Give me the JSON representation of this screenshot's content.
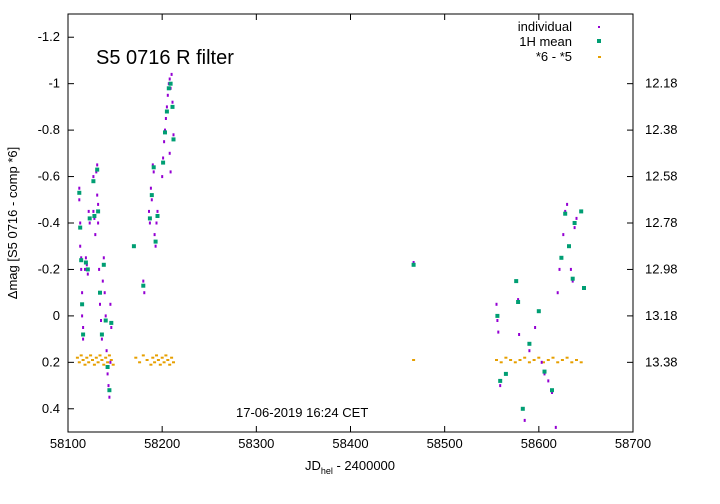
{
  "chart_data": {
    "type": "scatter",
    "title": "S5 0716 R filter",
    "annotation": "17-06-2019  16:24 CET",
    "xlabel_main": "JD",
    "xlabel_sub": "hel",
    "xlabel_tail": " - 2400000",
    "ylabel": "Δmag [S5 0716 - comp *6]",
    "xlim": [
      58100,
      58700
    ],
    "ylim": [
      -1.3,
      0.5
    ],
    "y_inverted": true,
    "x_ticks": [
      "58100",
      "58200",
      "58300",
      "58400",
      "58500",
      "58600",
      "58700"
    ],
    "y_ticks": [
      "-1.2",
      "-1",
      "-0.8",
      "-0.6",
      "-0.4",
      "-0.2",
      "0",
      "0.2",
      "0.4"
    ],
    "y2_ticks": [
      "12.18",
      "12.38",
      "12.58",
      "12.78",
      "12.98",
      "13.18",
      "13.38"
    ],
    "grid": false,
    "legend_position": "top-right",
    "legend": [
      {
        "label": "individual",
        "color": "#9400d3"
      },
      {
        "label": "1H mean",
        "color": "#009e73"
      },
      {
        "label": "*6 - *5",
        "color": "#e69f00"
      }
    ],
    "series": [
      {
        "name": "individual",
        "color": "#9400d3",
        "points": [
          [
            58112,
            -0.55
          ],
          [
            58112,
            -0.5
          ],
          [
            58113,
            -0.4
          ],
          [
            58113,
            -0.3
          ],
          [
            58114,
            -0.25
          ],
          [
            58114,
            -0.2
          ],
          [
            58115,
            -0.1
          ],
          [
            58115,
            0.0
          ],
          [
            58116,
            0.05
          ],
          [
            58116,
            0.1
          ],
          [
            58118,
            -0.2
          ],
          [
            58119,
            -0.25
          ],
          [
            58120,
            -0.22
          ],
          [
            58121,
            -0.18
          ],
          [
            58122,
            -0.45
          ],
          [
            58123,
            -0.4
          ],
          [
            58126,
            -0.58
          ],
          [
            58127,
            -0.6
          ],
          [
            58127,
            -0.45
          ],
          [
            58128,
            -0.42
          ],
          [
            58129,
            -0.35
          ],
          [
            58130,
            -0.62
          ],
          [
            58131,
            -0.65
          ],
          [
            58131,
            -0.52
          ],
          [
            58132,
            -0.48
          ],
          [
            58132,
            -0.4
          ],
          [
            58133,
            -0.2
          ],
          [
            58134,
            -0.05
          ],
          [
            58135,
            0.02
          ],
          [
            58136,
            0.1
          ],
          [
            58137,
            -0.15
          ],
          [
            58138,
            -0.25
          ],
          [
            58139,
            -0.1
          ],
          [
            58140,
            0.0
          ],
          [
            58141,
            0.15
          ],
          [
            58142,
            0.25
          ],
          [
            58143,
            0.3
          ],
          [
            58144,
            0.35
          ],
          [
            58145,
            0.2
          ],
          [
            58146,
            0.05
          ],
          [
            58145,
            -0.05
          ],
          [
            58180,
            -0.15
          ],
          [
            58181,
            -0.1
          ],
          [
            58186,
            -0.45
          ],
          [
            58187,
            -0.4
          ],
          [
            58188,
            -0.55
          ],
          [
            58189,
            -0.5
          ],
          [
            58190,
            -0.65
          ],
          [
            58191,
            -0.62
          ],
          [
            58192,
            -0.35
          ],
          [
            58193,
            -0.3
          ],
          [
            58194,
            -0.4
          ],
          [
            58195,
            -0.45
          ],
          [
            58200,
            -0.6
          ],
          [
            58201,
            -0.68
          ],
          [
            58202,
            -0.75
          ],
          [
            58203,
            -0.8
          ],
          [
            58204,
            -0.85
          ],
          [
            58205,
            -0.9
          ],
          [
            58206,
            -0.95
          ],
          [
            58207,
            -1.0
          ],
          [
            58208,
            -1.02
          ],
          [
            58209,
            -0.98
          ],
          [
            58210,
            -1.04
          ],
          [
            58211,
            -0.92
          ],
          [
            58212,
            -0.78
          ],
          [
            58208,
            -0.7
          ],
          [
            58209,
            -0.62
          ],
          [
            58467,
            -0.23
          ],
          [
            58555,
            -0.05
          ],
          [
            58556,
            0.02
          ],
          [
            58557,
            0.07
          ],
          [
            58559,
            0.3
          ],
          [
            58576,
            -0.15
          ],
          [
            58578,
            -0.07
          ],
          [
            58579,
            0.08
          ],
          [
            58583,
            0.4
          ],
          [
            58585,
            0.45
          ],
          [
            58590,
            0.15
          ],
          [
            58596,
            0.05
          ],
          [
            58600,
            -0.02
          ],
          [
            58603,
            0.2
          ],
          [
            58606,
            0.25
          ],
          [
            58610,
            0.28
          ],
          [
            58614,
            0.33
          ],
          [
            58618,
            0.48
          ],
          [
            58620,
            -0.1
          ],
          [
            58622,
            -0.2
          ],
          [
            58624,
            -0.25
          ],
          [
            58626,
            -0.35
          ],
          [
            58628,
            -0.45
          ],
          [
            58630,
            -0.48
          ],
          [
            58632,
            -0.3
          ],
          [
            58634,
            -0.2
          ],
          [
            58636,
            -0.15
          ],
          [
            58638,
            -0.38
          ],
          [
            58640,
            -0.42
          ],
          [
            58645,
            -0.45
          ],
          [
            58648,
            -0.12
          ]
        ]
      },
      {
        "name": "1H mean",
        "color": "#009e73",
        "points": [
          [
            58112,
            -0.53
          ],
          [
            58113,
            -0.38
          ],
          [
            58114,
            -0.24
          ],
          [
            58115,
            -0.05
          ],
          [
            58116,
            0.08
          ],
          [
            58119,
            -0.23
          ],
          [
            58121,
            -0.2
          ],
          [
            58123,
            -0.42
          ],
          [
            58127,
            -0.58
          ],
          [
            58128,
            -0.43
          ],
          [
            58131,
            -0.63
          ],
          [
            58132,
            -0.45
          ],
          [
            58134,
            -0.1
          ],
          [
            58136,
            0.08
          ],
          [
            58138,
            -0.22
          ],
          [
            58140,
            0.02
          ],
          [
            58142,
            0.22
          ],
          [
            58144,
            0.32
          ],
          [
            58146,
            0.03
          ],
          [
            58170,
            -0.3
          ],
          [
            58180,
            -0.13
          ],
          [
            58187,
            -0.42
          ],
          [
            58189,
            -0.52
          ],
          [
            58191,
            -0.64
          ],
          [
            58193,
            -0.32
          ],
          [
            58195,
            -0.43
          ],
          [
            58201,
            -0.66
          ],
          [
            58203,
            -0.79
          ],
          [
            58205,
            -0.88
          ],
          [
            58207,
            -0.98
          ],
          [
            58209,
            -1.0
          ],
          [
            58211,
            -0.9
          ],
          [
            58212,
            -0.76
          ],
          [
            58467,
            -0.22
          ],
          [
            58556,
            0.0
          ],
          [
            58559,
            0.28
          ],
          [
            58565,
            0.25
          ],
          [
            58576,
            -0.15
          ],
          [
            58578,
            -0.06
          ],
          [
            58583,
            0.4
          ],
          [
            58590,
            0.12
          ],
          [
            58600,
            -0.02
          ],
          [
            58606,
            0.24
          ],
          [
            58614,
            0.32
          ],
          [
            58624,
            -0.25
          ],
          [
            58628,
            -0.44
          ],
          [
            58632,
            -0.3
          ],
          [
            58636,
            -0.16
          ],
          [
            58638,
            -0.4
          ],
          [
            58645,
            -0.45
          ],
          [
            58648,
            -0.12
          ]
        ]
      },
      {
        "name": "*6 - *5",
        "color": "#e69f00",
        "points": [
          [
            58110,
            0.18
          ],
          [
            58112,
            0.2
          ],
          [
            58114,
            0.17
          ],
          [
            58116,
            0.19
          ],
          [
            58118,
            0.21
          ],
          [
            58120,
            0.18
          ],
          [
            58122,
            0.2
          ],
          [
            58124,
            0.17
          ],
          [
            58126,
            0.19
          ],
          [
            58128,
            0.21
          ],
          [
            58130,
            0.18
          ],
          [
            58132,
            0.2
          ],
          [
            58134,
            0.17
          ],
          [
            58136,
            0.19
          ],
          [
            58138,
            0.21
          ],
          [
            58140,
            0.18
          ],
          [
            58142,
            0.2
          ],
          [
            58144,
            0.17
          ],
          [
            58146,
            0.19
          ],
          [
            58148,
            0.21
          ],
          [
            58172,
            0.18
          ],
          [
            58176,
            0.2
          ],
          [
            58180,
            0.17
          ],
          [
            58184,
            0.19
          ],
          [
            58188,
            0.21
          ],
          [
            58190,
            0.18
          ],
          [
            58192,
            0.2
          ],
          [
            58194,
            0.17
          ],
          [
            58196,
            0.19
          ],
          [
            58198,
            0.21
          ],
          [
            58200,
            0.18
          ],
          [
            58202,
            0.2
          ],
          [
            58204,
            0.17
          ],
          [
            58206,
            0.19
          ],
          [
            58208,
            0.21
          ],
          [
            58210,
            0.18
          ],
          [
            58212,
            0.2
          ],
          [
            58467,
            0.19
          ],
          [
            58555,
            0.19
          ],
          [
            58560,
            0.2
          ],
          [
            58565,
            0.18
          ],
          [
            58570,
            0.19
          ],
          [
            58575,
            0.2
          ],
          [
            58580,
            0.19
          ],
          [
            58585,
            0.18
          ],
          [
            58590,
            0.2
          ],
          [
            58595,
            0.19
          ],
          [
            58600,
            0.18
          ],
          [
            58605,
            0.2
          ],
          [
            58610,
            0.19
          ],
          [
            58615,
            0.18
          ],
          [
            58620,
            0.2
          ],
          [
            58625,
            0.19
          ],
          [
            58630,
            0.18
          ],
          [
            58635,
            0.2
          ],
          [
            58640,
            0.19
          ],
          [
            58645,
            0.2
          ]
        ]
      }
    ]
  }
}
